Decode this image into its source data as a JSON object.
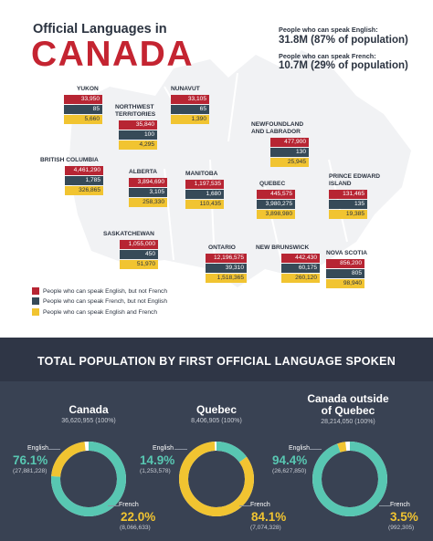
{
  "header": {
    "title_small": "Official Languages in",
    "title_big": "CANADA"
  },
  "population": {
    "english_label": "People who can speak English:",
    "english_value": "31.8M (87% of population)",
    "french_label": "People who can speak French:",
    "french_value": "10.7M (29% of population)"
  },
  "colors": {
    "english_only": "#b72533",
    "french_only": "#364a58",
    "both": "#f1c431",
    "english_donut": "#58c7b2",
    "french_donut": "#f1c431"
  },
  "legend": [
    {
      "label": "People who can speak English, but not French"
    },
    {
      "label": "People who can speak French, but not English"
    },
    {
      "label": "People who can speak English and French"
    }
  ],
  "chart_data": [
    {
      "type": "bar",
      "series": [
        {
          "name": "People who can speak English, but not French"
        },
        {
          "name": "People who can speak French, but not English"
        },
        {
          "name": "People who can speak English and French"
        }
      ],
      "provinces": [
        {
          "name": "YUKON",
          "values": [
            "33,950",
            "85",
            "5,660"
          ]
        },
        {
          "name": "NUNAVUT",
          "values": [
            "33,105",
            "65",
            "1,390"
          ]
        },
        {
          "name": "NORTHWEST TERRITORIES",
          "values": [
            "35,840",
            "100",
            "4,295"
          ]
        },
        {
          "name": "NEWFOUNDLAND AND LABRADOR",
          "values": [
            "477,900",
            "130",
            "25,945"
          ]
        },
        {
          "name": "BRITISH COLUMBIA",
          "values": [
            "4,461,290",
            "1,785",
            "326,865"
          ]
        },
        {
          "name": "ALBERTA",
          "values": [
            "3,894,690",
            "3,105",
            "258,330"
          ]
        },
        {
          "name": "MANITOBA",
          "values": [
            "1,197,535",
            "1,680",
            "110,435"
          ]
        },
        {
          "name": "QUEBEC",
          "values": [
            "445,575",
            "3,980,275",
            "3,898,980"
          ]
        },
        {
          "name": "PRINCE EDWARD ISLAND",
          "values": [
            "131,465",
            "135",
            "19,385"
          ]
        },
        {
          "name": "SASKATCHEWAN",
          "values": [
            "1,055,000",
            "450",
            "51,970"
          ]
        },
        {
          "name": "ONTARIO",
          "values": [
            "12,196,575",
            "39,310",
            "1,518,365"
          ]
        },
        {
          "name": "NEW BRUNSWICK",
          "values": [
            "442,430",
            "60,175",
            "260,120"
          ]
        },
        {
          "name": "NOVA SCOTIA",
          "values": [
            "856,200",
            "805",
            "98,940"
          ]
        }
      ]
    },
    {
      "type": "pie",
      "title": "TOTAL POPULATION BY FIRST OFFICIAL LANGUAGE SPOKEN",
      "charts": [
        {
          "name": "Canada",
          "total": "36,620,955 (100%)",
          "slices": [
            {
              "label": "English",
              "pct": 76.1,
              "pct_text": "76.1%",
              "count": "(27,881,228)"
            },
            {
              "label": "French",
              "pct": 22.0,
              "pct_text": "22.0%",
              "count": "(8,066,633)"
            }
          ]
        },
        {
          "name": "Quebec",
          "total": "8,406,905 (100%)",
          "slices": [
            {
              "label": "English",
              "pct": 14.9,
              "pct_text": "14.9%",
              "count": "(1,253,578)"
            },
            {
              "label": "French",
              "pct": 84.1,
              "pct_text": "84.1%",
              "count": "(7,074,328)"
            }
          ]
        },
        {
          "name": "Canada outside of Quebec",
          "total": "28,214,050 (100%)",
          "slices": [
            {
              "label": "English",
              "pct": 94.4,
              "pct_text": "94.4%",
              "count": "(26,627,850)"
            },
            {
              "label": "French",
              "pct": 3.5,
              "pct_text": "3.5%",
              "count": "(992,305)"
            }
          ]
        }
      ]
    }
  ]
}
